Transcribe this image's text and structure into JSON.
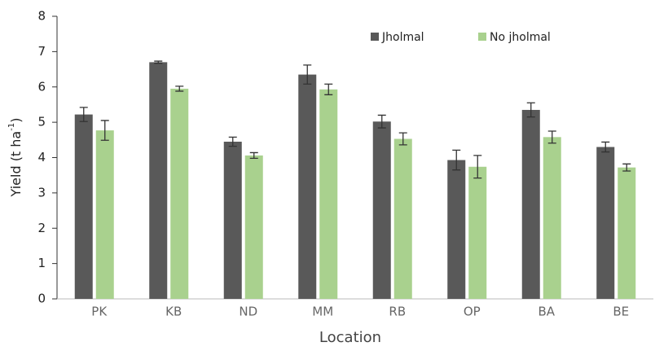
{
  "chart_data": {
    "type": "bar",
    "y_label": [
      "Yield (t ha",
      "-1",
      ")"
    ],
    "x_label": "Location",
    "categories": [
      "PK",
      "KB",
      "ND",
      "MM",
      "RB",
      "OP",
      "BA",
      "BE"
    ],
    "series": [
      {
        "name": "Jholmal",
        "color": "#595959",
        "values": [
          5.22,
          6.7,
          4.45,
          6.35,
          5.02,
          3.93,
          5.35,
          4.3
        ],
        "errors": [
          0.2,
          0.03,
          0.13,
          0.27,
          0.18,
          0.28,
          0.2,
          0.14
        ]
      },
      {
        "name": "No jholmal",
        "color": "#a9d18e",
        "values": [
          4.77,
          5.95,
          4.06,
          5.93,
          4.53,
          3.74,
          4.58,
          3.72
        ],
        "errors": [
          0.28,
          0.07,
          0.08,
          0.15,
          0.17,
          0.32,
          0.17,
          0.1
        ]
      }
    ],
    "ylim": [
      0,
      8
    ],
    "yticks": [
      0,
      1,
      2,
      3,
      4,
      5,
      6,
      7,
      8
    ],
    "grid": false,
    "legend": "top"
  }
}
